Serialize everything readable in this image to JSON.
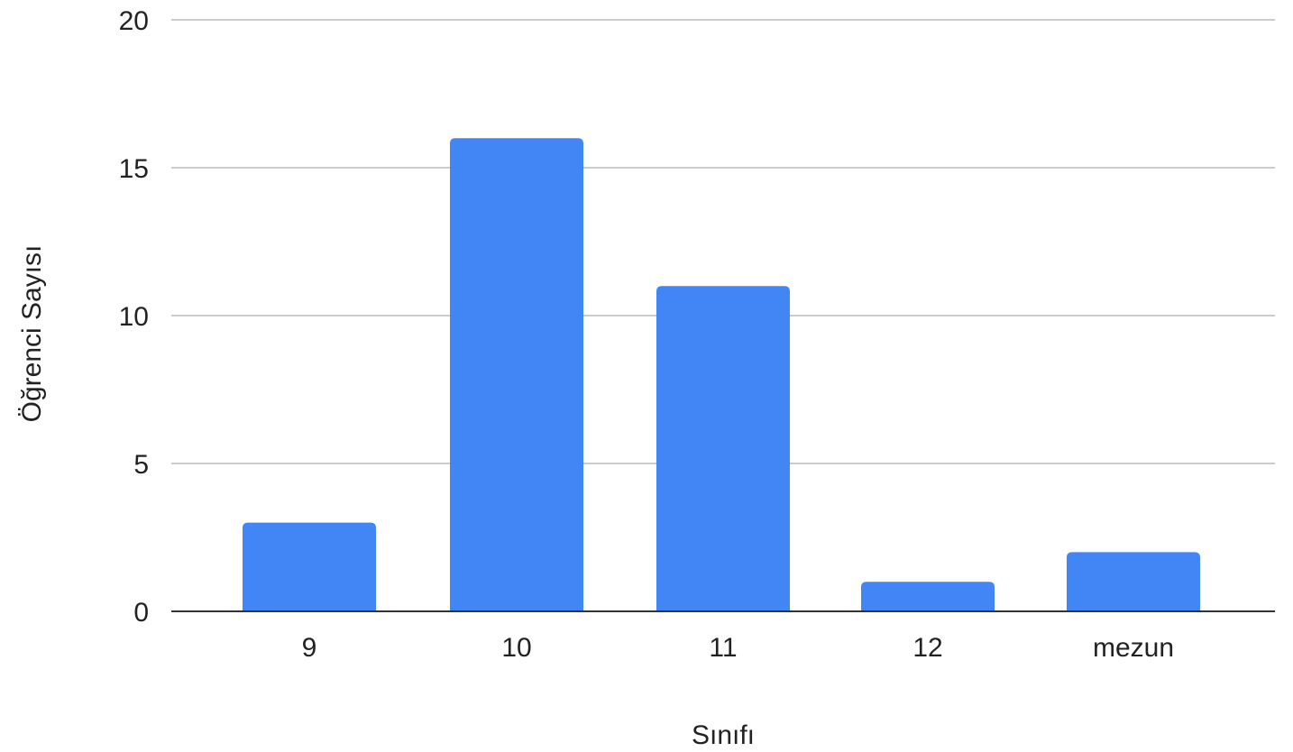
{
  "chart_data": {
    "type": "bar",
    "title": "",
    "xlabel": "Sınıfı",
    "ylabel": "Öğrenci Sayısı",
    "categories": [
      "9",
      "10",
      "11",
      "12",
      "mezun"
    ],
    "values": [
      3,
      16,
      11,
      1,
      2
    ],
    "ylim": [
      0,
      20
    ],
    "yticks": [
      "0",
      "5",
      "10",
      "15",
      "20"
    ],
    "grid": true,
    "legend": "none",
    "bar_color": "#4285F4",
    "grid_color": "#CCCCCC",
    "baseline_color": "#333333"
  }
}
